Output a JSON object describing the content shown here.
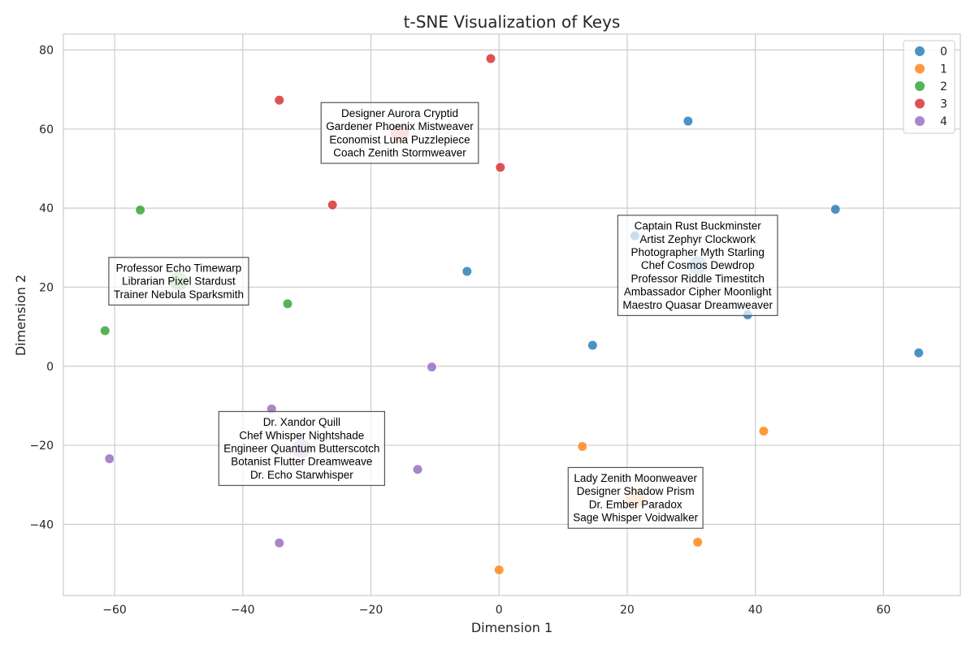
{
  "chart_data": {
    "type": "scatter",
    "title": "t-SNE Visualization of Keys",
    "xlabel": "Dimension 1",
    "ylabel": "Dimension 2",
    "xlim": [
      -68,
      72
    ],
    "ylim": [
      -58,
      84
    ],
    "xticks": [
      -60,
      -40,
      -20,
      0,
      20,
      40,
      60
    ],
    "yticks": [
      -40,
      -20,
      0,
      20,
      40,
      60,
      80
    ],
    "grid": true,
    "legend_position": "top-right",
    "series": [
      {
        "name": "0",
        "color": "#1f77b4",
        "points": [
          [
            29.5,
            62
          ],
          [
            52.5,
            39.7
          ],
          [
            21.2,
            33
          ],
          [
            -5,
            24
          ],
          [
            31,
            25.5
          ],
          [
            38.8,
            13
          ],
          [
            14.6,
            5.3
          ],
          [
            65.5,
            3.4
          ]
        ]
      },
      {
        "name": "1",
        "color": "#ff7f0e",
        "points": [
          [
            13,
            -20.3
          ],
          [
            41.3,
            -16.4
          ],
          [
            21.3,
            -33.3
          ],
          [
            31,
            -44.5
          ],
          [
            0,
            -51.5
          ]
        ]
      },
      {
        "name": "2",
        "color": "#2ca02c",
        "points": [
          [
            -56,
            39.5
          ],
          [
            -50,
            21.5
          ],
          [
            -33,
            15.8
          ],
          [
            -61.5,
            9
          ]
        ]
      },
      {
        "name": "3",
        "color": "#d62728",
        "points": [
          [
            -1.3,
            77.8
          ],
          [
            -34.3,
            67.3
          ],
          [
            -15.5,
            59
          ],
          [
            0.2,
            50.3
          ],
          [
            -26,
            40.8
          ]
        ]
      },
      {
        "name": "4",
        "color": "#9467bd",
        "points": [
          [
            -10.5,
            -0.2
          ],
          [
            -35.5,
            -10.8
          ],
          [
            -30.8,
            -20.8
          ],
          [
            -60.8,
            -23.4
          ],
          [
            -12.7,
            -26.1
          ],
          [
            -34.3,
            -44.7
          ]
        ]
      }
    ],
    "annotations": [
      {
        "x": -15.5,
        "y": 59,
        "series": "3",
        "lines": [
          "Designer Aurora Cryptid",
          "Gardener Phoenix Mistweaver",
          "Economist Luna Puzzlepiece",
          "Coach Zenith Stormweaver"
        ]
      },
      {
        "x": 31,
        "y": 25.5,
        "series": "0",
        "lines": [
          "Captain Rust Buckminster",
          "Artist Zephyr Clockwork",
          "Photographer Myth Starling",
          "Chef Cosmos Dewdrop",
          "Professor Riddle Timestitch",
          "Ambassador Cipher Moonlight",
          "Maestro Quasar Dreamweaver"
        ]
      },
      {
        "x": -50,
        "y": 21.5,
        "series": "2",
        "lines": [
          "Professor Echo Timewarp",
          "Librarian Pixel Stardust",
          "Trainer Nebula Sparksmith"
        ]
      },
      {
        "x": -30.8,
        "y": -20.8,
        "series": "4",
        "lines": [
          "Dr. Xandor Quill",
          "Chef Whisper Nightshade",
          "Engineer Quantum Butterscotch",
          "Botanist Flutter Dreamweave",
          "Dr. Echo Starwhisper"
        ]
      },
      {
        "x": 21.3,
        "y": -33.3,
        "series": "1",
        "lines": [
          "Lady Zenith Moonweaver",
          "Designer Shadow Prism",
          "Dr. Ember Paradox",
          "Sage Whisper Voidwalker"
        ]
      }
    ]
  }
}
